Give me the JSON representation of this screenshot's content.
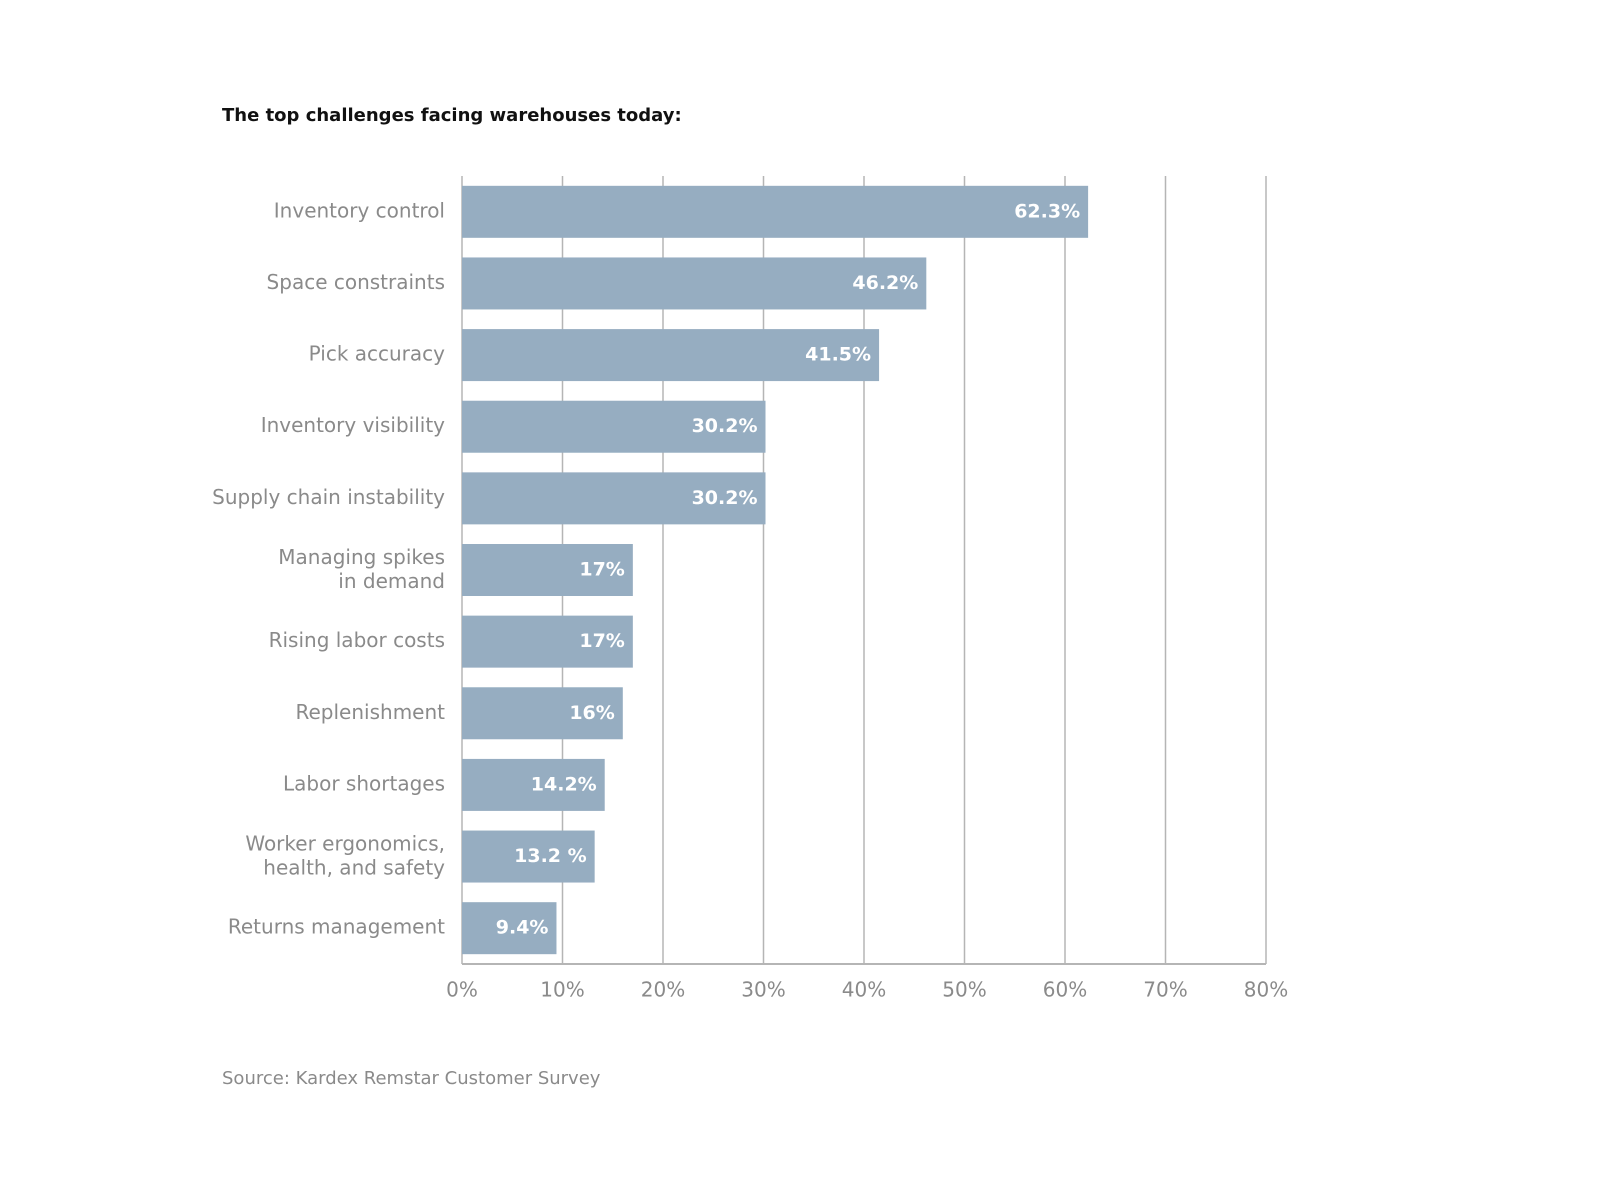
{
  "chart_data": {
    "type": "bar",
    "orientation": "horizontal",
    "title": "The top challenges facing warehouses today:",
    "source": "Source: Kardex Remstar Customer Survey",
    "categories": [
      "Inventory control",
      "Space constraints",
      "Pick accuracy",
      "Inventory visibility",
      "Supply chain instability",
      "Managing spikes\nin demand",
      "Rising labor costs",
      "Replenishment",
      "Labor shortages",
      "Worker ergonomics,\nhealth, and safety",
      "Returns management"
    ],
    "values": [
      62.3,
      46.2,
      41.5,
      30.2,
      30.2,
      17,
      17,
      16,
      14.2,
      13.2,
      9.4
    ],
    "value_labels": [
      "62.3%",
      "46.2%",
      "41.5%",
      "30.2%",
      "30.2%",
      "17%",
      "17%",
      "16%",
      "14.2%",
      "13.2 %",
      "9.4%"
    ],
    "color": "#96adc1",
    "xlim": [
      0,
      80
    ],
    "xticks": [
      {
        "value": 0,
        "label": "0%"
      },
      {
        "value": 10,
        "label": "10%"
      },
      {
        "value": 20,
        "label": "20%"
      },
      {
        "value": 30,
        "label": "30%"
      },
      {
        "value": 40,
        "label": "40%"
      },
      {
        "value": 50,
        "label": "50%"
      },
      {
        "value": 60,
        "label": "60%"
      },
      {
        "value": 70,
        "label": "70%"
      },
      {
        "value": 80,
        "label": "80%"
      }
    ],
    "grid": true
  }
}
